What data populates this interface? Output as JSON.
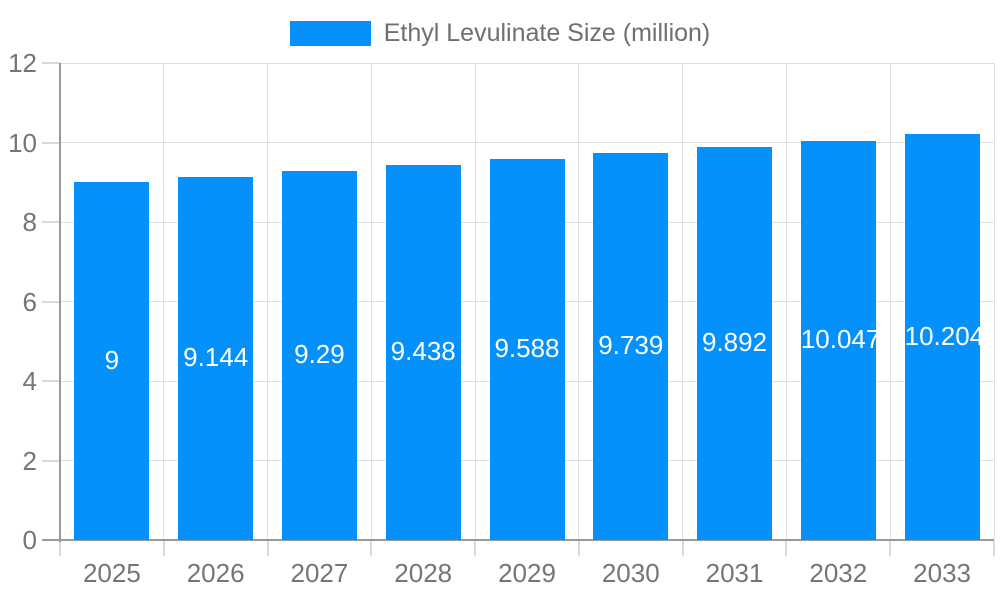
{
  "chart_data": {
    "type": "bar",
    "title": "",
    "legend": "Ethyl Levulinate Size (million)",
    "legend_position": "top-center",
    "categories": [
      "2025",
      "2026",
      "2027",
      "2028",
      "2029",
      "2030",
      "2031",
      "2032",
      "2033"
    ],
    "series": [
      {
        "name": "Ethyl Levulinate Size (million)",
        "values": [
          9,
          9.144,
          9.29,
          9.438,
          9.588,
          9.739,
          9.892,
          10.047,
          10.204
        ],
        "labels": [
          "9",
          "9.144",
          "9.29",
          "9.438",
          "9.588",
          "9.739",
          "9.892",
          "10.047",
          "10.204"
        ]
      }
    ],
    "xlabel": "",
    "ylabel": "",
    "ylim": [
      0,
      12
    ],
    "yticks": [
      0,
      2,
      4,
      6,
      8,
      10,
      12
    ],
    "ytick_labels": [
      "0",
      "2",
      "4",
      "6",
      "8",
      "10",
      "12"
    ],
    "grid": "horizontal-and-vertical",
    "bar_value_label_position": "inside-center",
    "colors": {
      "bar": "#0591fb",
      "bar_label": "#ffffff",
      "grid_line": "#e0e0e0",
      "tick_mark": "#dadada",
      "axis_line": "#9a9a9a",
      "axis_label": "#757575",
      "legend_text": "#6f6f6f",
      "background": "#ffffff"
    }
  }
}
